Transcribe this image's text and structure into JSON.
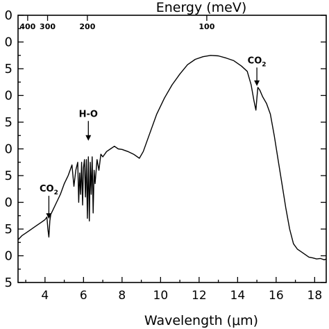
{
  "chart_data": {
    "type": "line",
    "xlabel": "Wavelength (μm)",
    "top_axis_label": "Energy (meV)",
    "xlim": [
      2.6,
      18.6
    ],
    "ylim": [
      0,
      10
    ],
    "x_ticks": [
      4,
      6,
      8,
      10,
      12,
      14,
      16,
      18
    ],
    "x_tick_labels": [
      "4",
      "6",
      "8",
      "10",
      "12",
      "14",
      "16",
      "18"
    ],
    "y_ticks": [
      0,
      1,
      2,
      3,
      4,
      5,
      6,
      7,
      8,
      9,
      10
    ],
    "y_tick_labels": [
      "5",
      "0",
      "5",
      "0",
      "5",
      "0",
      "5",
      "0",
      "5",
      "0",
      "0"
    ],
    "top_ticks_meV": [
      400,
      300,
      200,
      100
    ],
    "top_tick_labels": [
      "400",
      "300",
      "200",
      "100"
    ],
    "annotations": [
      {
        "label": "CO",
        "sub": "2",
        "x": 4.2,
        "y": 2.28,
        "text_y": 3.4
      },
      {
        "label": "H-O",
        "sub": "",
        "x": 6.25,
        "y": 5.2,
        "text_y": 6.2
      },
      {
        "label": "CO",
        "sub": "2",
        "x": 15.0,
        "y": 7.25,
        "text_y": 8.2
      }
    ],
    "grid": false,
    "series": [
      {
        "x": [
          2.6,
          2.8,
          3.0,
          3.2,
          3.4,
          3.6,
          3.8,
          4.0,
          4.1,
          4.15,
          4.2,
          4.25,
          4.3,
          4.4,
          4.6,
          4.8,
          5.0,
          5.2,
          5.4,
          5.5,
          5.6,
          5.7,
          5.75,
          5.8,
          5.85,
          5.9,
          5.95,
          6.0,
          6.05,
          6.1,
          6.15,
          6.2,
          6.25,
          6.3,
          6.35,
          6.4,
          6.45,
          6.5,
          6.55,
          6.6,
          6.7,
          6.8,
          6.9,
          7.0,
          7.2,
          7.4,
          7.6,
          7.8,
          8.0,
          8.3,
          8.6,
          8.9,
          9.1,
          9.4,
          9.8,
          10.2,
          10.6,
          11.0,
          11.4,
          11.8,
          12.2,
          12.6,
          13.0,
          13.4,
          13.8,
          14.2,
          14.5,
          14.7,
          14.85,
          14.95,
          15.0,
          15.05,
          15.15,
          15.3,
          15.5,
          15.7,
          15.9,
          16.1,
          16.3,
          16.5,
          16.7,
          16.9,
          17.1,
          17.3,
          17.5,
          17.7,
          17.9,
          18.1,
          18.3,
          18.5,
          18.6
        ],
        "y": [
          1.6,
          1.75,
          1.85,
          1.95,
          2.05,
          2.15,
          2.25,
          2.35,
          2.45,
          2.0,
          1.7,
          2.3,
          2.55,
          2.7,
          3.0,
          3.3,
          3.7,
          4.0,
          4.4,
          3.6,
          4.2,
          4.5,
          3.0,
          4.1,
          3.3,
          4.5,
          2.9,
          4.3,
          4.6,
          3.2,
          4.6,
          2.4,
          4.7,
          2.3,
          4.5,
          3.3,
          4.7,
          2.6,
          4.2,
          3.7,
          4.6,
          4.2,
          4.8,
          4.7,
          4.9,
          5.0,
          5.1,
          5.0,
          4.98,
          4.9,
          4.8,
          4.65,
          4.9,
          5.5,
          6.3,
          6.9,
          7.4,
          7.8,
          8.15,
          8.35,
          8.45,
          8.5,
          8.48,
          8.4,
          8.3,
          8.1,
          7.9,
          7.4,
          6.8,
          6.45,
          6.9,
          7.3,
          7.2,
          6.95,
          6.7,
          6.3,
          5.5,
          4.6,
          3.7,
          2.8,
          2.0,
          1.45,
          1.25,
          1.15,
          1.05,
          0.95,
          0.92,
          0.88,
          0.9,
          0.85,
          0.88
        ]
      }
    ]
  }
}
